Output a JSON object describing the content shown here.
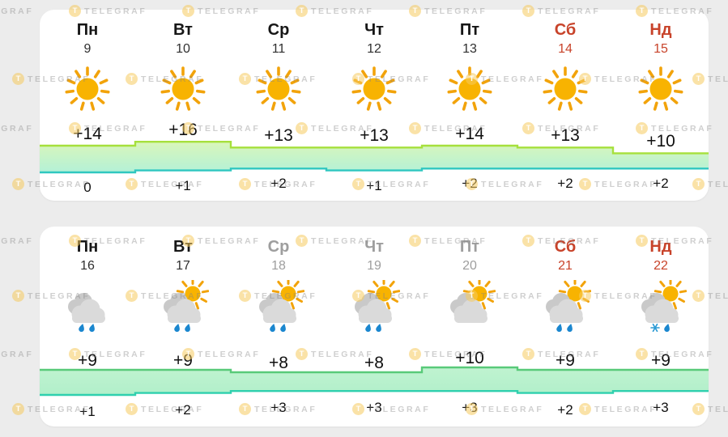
{
  "watermark": {
    "badge": "T",
    "label": "TELEGRAF"
  },
  "colors": {
    "page_bg": "#ececec",
    "card_bg": "#ffffff",
    "text_black": "#161616",
    "muted_gray": "#9e9e9e",
    "weekend_red": "#c8432a",
    "sun_core": "#f8b301",
    "sun_rays": "#f2a30a",
    "rain_drop": "#1b87cf",
    "snow_blue": "#2a9ad4"
  },
  "cards": [
    {
      "name": "week-1",
      "accent": {
        "top_line": "#a6e03c",
        "bottom_line": "#2fc7c0",
        "fill_top": "#d9f6ba",
        "fill_bottom": "#b4f1d7"
      },
      "days": [
        {
          "name": "Пн",
          "date": "9",
          "state": "normal",
          "icon": "sun",
          "high": "+14",
          "low": "0",
          "high_c": 14,
          "low_c": 0
        },
        {
          "name": "Вт",
          "date": "10",
          "state": "normal",
          "icon": "sun",
          "high": "+16",
          "low": "+1",
          "high_c": 16,
          "low_c": 1
        },
        {
          "name": "Ср",
          "date": "11",
          "state": "normal",
          "icon": "sun",
          "high": "+13",
          "low": "+2",
          "high_c": 13,
          "low_c": 2
        },
        {
          "name": "Чт",
          "date": "12",
          "state": "normal",
          "icon": "sun",
          "high": "+13",
          "low": "+1",
          "high_c": 13,
          "low_c": 1
        },
        {
          "name": "Пт",
          "date": "13",
          "state": "normal",
          "icon": "sun",
          "high": "+14",
          "low": "+2",
          "high_c": 14,
          "low_c": 2
        },
        {
          "name": "Сб",
          "date": "14",
          "state": "weekend",
          "icon": "sun",
          "high": "+13",
          "low": "+2",
          "high_c": 13,
          "low_c": 2
        },
        {
          "name": "Нд",
          "date": "15",
          "state": "weekend",
          "icon": "sun",
          "high": "+10",
          "low": "+2",
          "high_c": 10,
          "low_c": 2
        }
      ]
    },
    {
      "name": "week-2",
      "accent": {
        "top_line": "#58ca79",
        "bottom_line": "#2fd0ae",
        "fill_top": "#c0f3d0",
        "fill_bottom": "#b1efca"
      },
      "days": [
        {
          "name": "Пн",
          "date": "16",
          "state": "normal",
          "icon": "cloud-rain",
          "high": "+9",
          "low": "+1",
          "high_c": 9,
          "low_c": 1
        },
        {
          "name": "Вт",
          "date": "17",
          "state": "normal",
          "icon": "sun-cloud-rain",
          "high": "+9",
          "low": "+2",
          "high_c": 9,
          "low_c": 2
        },
        {
          "name": "Ср",
          "date": "18",
          "state": "muted",
          "icon": "sun-cloud-rain",
          "high": "+8",
          "low": "+3",
          "high_c": 8,
          "low_c": 3
        },
        {
          "name": "Чт",
          "date": "19",
          "state": "muted",
          "icon": "sun-cloud-rain",
          "high": "+8",
          "low": "+3",
          "high_c": 8,
          "low_c": 3
        },
        {
          "name": "Пт",
          "date": "20",
          "state": "muted",
          "icon": "sun-cloud",
          "high": "+10",
          "low": "+3",
          "high_c": 10,
          "low_c": 3
        },
        {
          "name": "Сб",
          "date": "21",
          "state": "weekend",
          "icon": "sun-cloud-rain",
          "high": "+9",
          "low": "+2",
          "high_c": 9,
          "low_c": 2
        },
        {
          "name": "Нд",
          "date": "22",
          "state": "weekend",
          "icon": "sun-cloud-snow",
          "high": "+9",
          "low": "+3",
          "high_c": 9,
          "low_c": 3
        }
      ]
    }
  ],
  "chart_data": [
    {
      "type": "area",
      "title": "Week 1 day/night temperature band",
      "categories": [
        "Пн 9",
        "Вт 10",
        "Ср 11",
        "Чт 12",
        "Пт 13",
        "Сб 14",
        "Нд 15"
      ],
      "series": [
        {
          "name": "day-high",
          "values": [
            14,
            16,
            13,
            13,
            14,
            13,
            10
          ]
        },
        {
          "name": "night-low",
          "values": [
            0,
            1,
            2,
            1,
            2,
            2,
            2
          ]
        }
      ],
      "legend_position": "none",
      "grid": false
    },
    {
      "type": "area",
      "title": "Week 2 day/night temperature band",
      "categories": [
        "Пн 16",
        "Вт 17",
        "Ср 18",
        "Чт 19",
        "Пт 20",
        "Сб 21",
        "Нд 22"
      ],
      "series": [
        {
          "name": "day-high",
          "values": [
            9,
            9,
            8,
            8,
            10,
            9,
            9
          ]
        },
        {
          "name": "night-low",
          "values": [
            1,
            2,
            3,
            3,
            3,
            2,
            3
          ]
        }
      ],
      "legend_position": "none",
      "grid": false
    }
  ]
}
